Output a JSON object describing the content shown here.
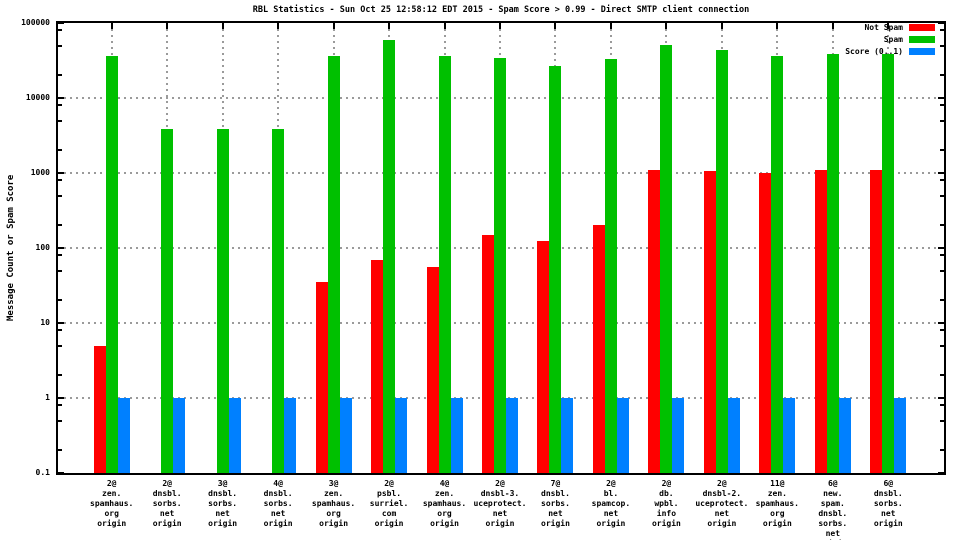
{
  "window": {
    "background": "#ffffff"
  },
  "chart_data": {
    "type": "bar",
    "title": "RBL Statistics - Sun Oct 25 12:58:12 EDT 2015 - Spam Score > 0.99 - Direct SMTP client connection",
    "xlabel": "",
    "ylabel": "Message Count or Spam Score",
    "y_scale": "log",
    "ylim": [
      0.1,
      100000
    ],
    "grid": true,
    "legend_position": "top-right-inside",
    "colors": {
      "not_spam": "#ff0000",
      "spam": "#00c000",
      "score": "#0080ff",
      "gridline": "#9a9a9a"
    },
    "y_ticks": [
      {
        "value": 100000,
        "label": "100000"
      },
      {
        "value": 10000,
        "label": "10000"
      },
      {
        "value": 1000,
        "label": "1000"
      },
      {
        "value": 100,
        "label": "100"
      },
      {
        "value": 10,
        "label": "10"
      },
      {
        "value": 1,
        "label": "1"
      },
      {
        "value": 0.1,
        "label": "0.1"
      }
    ],
    "y_minor_tick_multipliers": [
      2,
      5,
      8
    ],
    "categories": [
      {
        "label": "2@zen.spamhaus.org origin",
        "lines": [
          "2@",
          "zen.",
          "spamhaus.",
          "org",
          "origin"
        ]
      },
      {
        "label": "2@dnsbl.sorbs.net origin",
        "lines": [
          "2@",
          "dnsbl.",
          "sorbs.",
          "net",
          "origin"
        ]
      },
      {
        "label": "3@dnsbl.sorbs.net origin",
        "lines": [
          "3@",
          "dnsbl.",
          "sorbs.",
          "net",
          "origin"
        ]
      },
      {
        "label": "4@dnsbl.sorbs.net origin",
        "lines": [
          "4@",
          "dnsbl.",
          "sorbs.",
          "net",
          "origin"
        ]
      },
      {
        "label": "3@zen.spamhaus.org origin",
        "lines": [
          "3@",
          "zen.",
          "spamhaus.",
          "org",
          "origin"
        ]
      },
      {
        "label": "2@psbl.surriel.com origin",
        "lines": [
          "2@",
          "psbl.",
          "surriel.",
          "com",
          "origin"
        ]
      },
      {
        "label": "4@zen.spamhaus.org origin",
        "lines": [
          "4@",
          "zen.",
          "spamhaus.",
          "org",
          "origin"
        ]
      },
      {
        "label": "2@dnsbl-3.uceprotect.net origin",
        "lines": [
          "2@",
          "dnsbl-3.",
          "uceprotect.",
          "net",
          "origin"
        ]
      },
      {
        "label": "7@dnsbl.sorbs.net origin",
        "lines": [
          "7@",
          "dnsbl.",
          "sorbs.",
          "net",
          "origin"
        ]
      },
      {
        "label": "2@bl.spamcop.net origin",
        "lines": [
          "2@",
          "bl.",
          "spamcop.",
          "net",
          "origin"
        ]
      },
      {
        "label": "2@db.wpbl.info origin",
        "lines": [
          "2@",
          "db.",
          "wpbl.",
          "info",
          "origin"
        ]
      },
      {
        "label": "2@dnsbl-2.uceprotect.net origin",
        "lines": [
          "2@",
          "dnsbl-2.",
          "uceprotect.",
          "net",
          "origin"
        ]
      },
      {
        "label": "11@zen.spamhaus.org origin",
        "lines": [
          "11@",
          "zen.",
          "spamhaus.",
          "org",
          "origin"
        ]
      },
      {
        "label": "6@new.spam.dnsbl.sorbs.net origin",
        "lines": [
          "6@",
          "new.",
          "spam.",
          "dnsbl.",
          "sorbs.",
          "net",
          "origin"
        ]
      },
      {
        "label": "6@dnsbl.sorbs.net origin",
        "lines": [
          "6@",
          "dnsbl.",
          "sorbs.",
          "net",
          "origin"
        ]
      }
    ],
    "series": [
      {
        "name": "Not Spam",
        "color": "#ff0000",
        "values": [
          5,
          null,
          null,
          null,
          35,
          70,
          55,
          150,
          125,
          200,
          1100,
          1060,
          1000,
          1100,
          1100
        ]
      },
      {
        "name": "Spam",
        "color": "#00c000",
        "values": [
          36000,
          3900,
          3900,
          3900,
          36000,
          60000,
          36000,
          34000,
          27000,
          33000,
          51000,
          44000,
          36000,
          39000,
          39000
        ]
      },
      {
        "name": "Score (0..1)",
        "color": "#0080ff",
        "values": [
          1,
          1,
          1,
          1,
          1,
          1,
          1,
          1,
          1,
          1,
          1,
          1,
          1,
          1,
          1
        ]
      }
    ]
  }
}
